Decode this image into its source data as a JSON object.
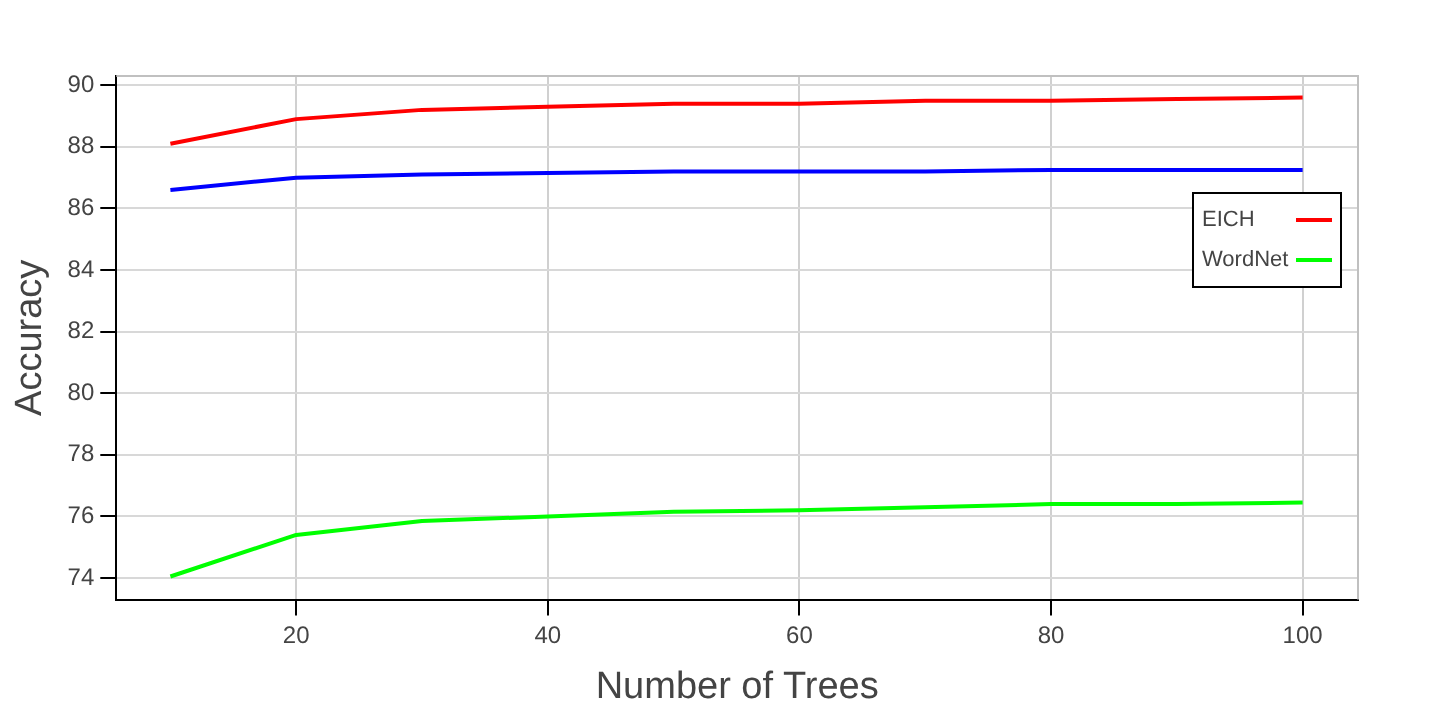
{
  "chart_data": {
    "type": "line",
    "xlabel": "Number of Trees",
    "ylabel": "Accuracy",
    "x": [
      10,
      20,
      30,
      40,
      50,
      60,
      70,
      80,
      90,
      100
    ],
    "series": [
      {
        "color": "#0000ff",
        "values": [
          86.6,
          87.0,
          87.1,
          87.15,
          87.2,
          87.2,
          87.2,
          87.25,
          87.25,
          87.25
        ]
      },
      {
        "name": "EICH",
        "color": "#ff0000",
        "values": [
          88.1,
          88.9,
          89.2,
          89.3,
          89.4,
          89.4,
          89.5,
          89.5,
          89.55,
          89.6
        ]
      },
      {
        "name": "WordNet",
        "color": "#00ff00",
        "values": [
          74.05,
          75.4,
          75.85,
          76.0,
          76.15,
          76.2,
          76.3,
          76.4,
          76.4,
          76.45
        ]
      }
    ],
    "xlim": [
      5.7,
      104.4
    ],
    "ylim": [
      73.3,
      90.3
    ],
    "xticks": [
      20,
      40,
      60,
      80,
      100
    ],
    "yticks": [
      74,
      76,
      78,
      80,
      82,
      84,
      86,
      88,
      90
    ],
    "grid": true,
    "legend": "top right",
    "marker": "none",
    "line_style": "solid"
  }
}
